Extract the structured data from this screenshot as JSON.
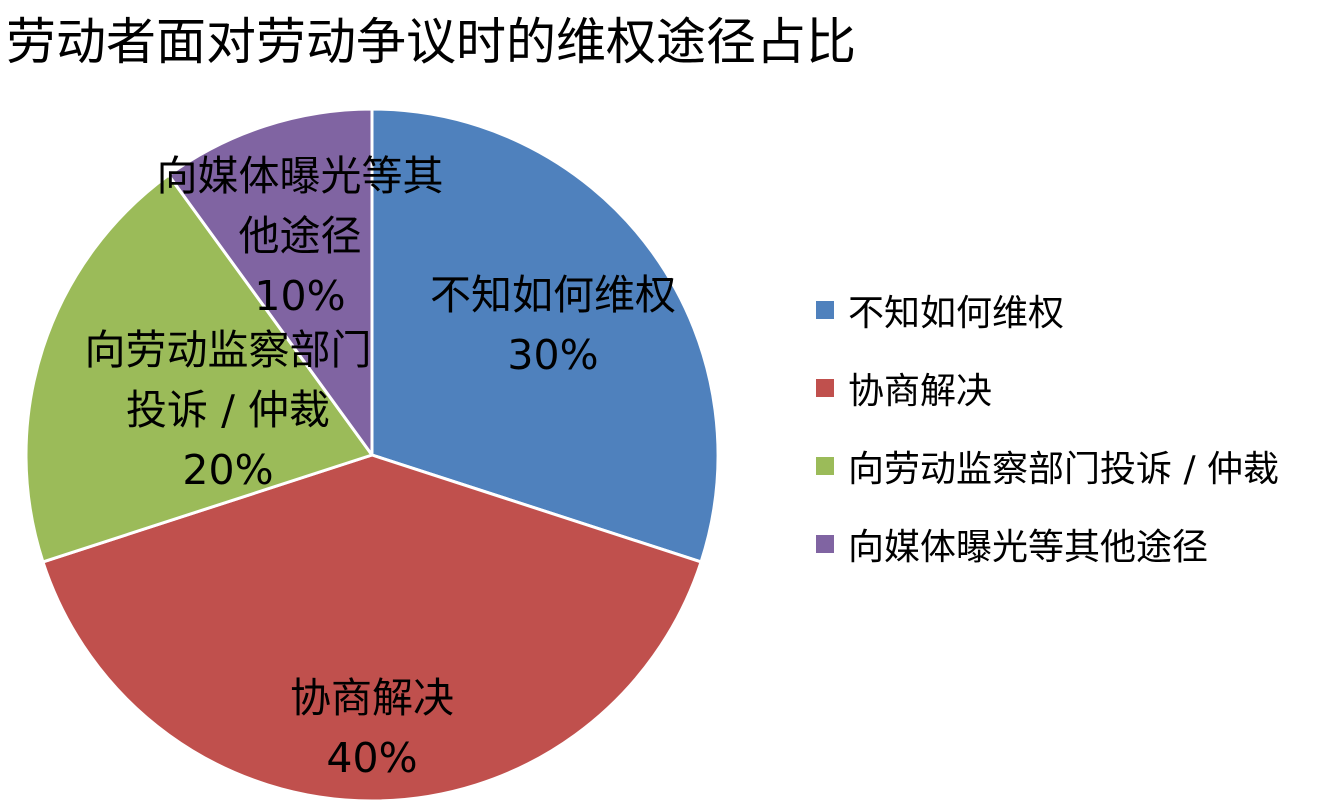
{
  "chart_data": {
    "type": "pie",
    "title": "劳动者面对劳动争议时的维权途径占比",
    "categories": [
      "不知如何维权",
      "协商解决",
      "向劳动监察部门投诉 / 仲裁",
      "向媒体曝光等其他途径"
    ],
    "values": [
      30,
      40,
      20,
      10
    ],
    "value_labels": [
      "30%",
      "40%",
      "20%",
      "10%"
    ],
    "colors": [
      "#4f81bd",
      "#c0504d",
      "#9bbb59",
      "#8064a2"
    ],
    "legend": "right"
  }
}
